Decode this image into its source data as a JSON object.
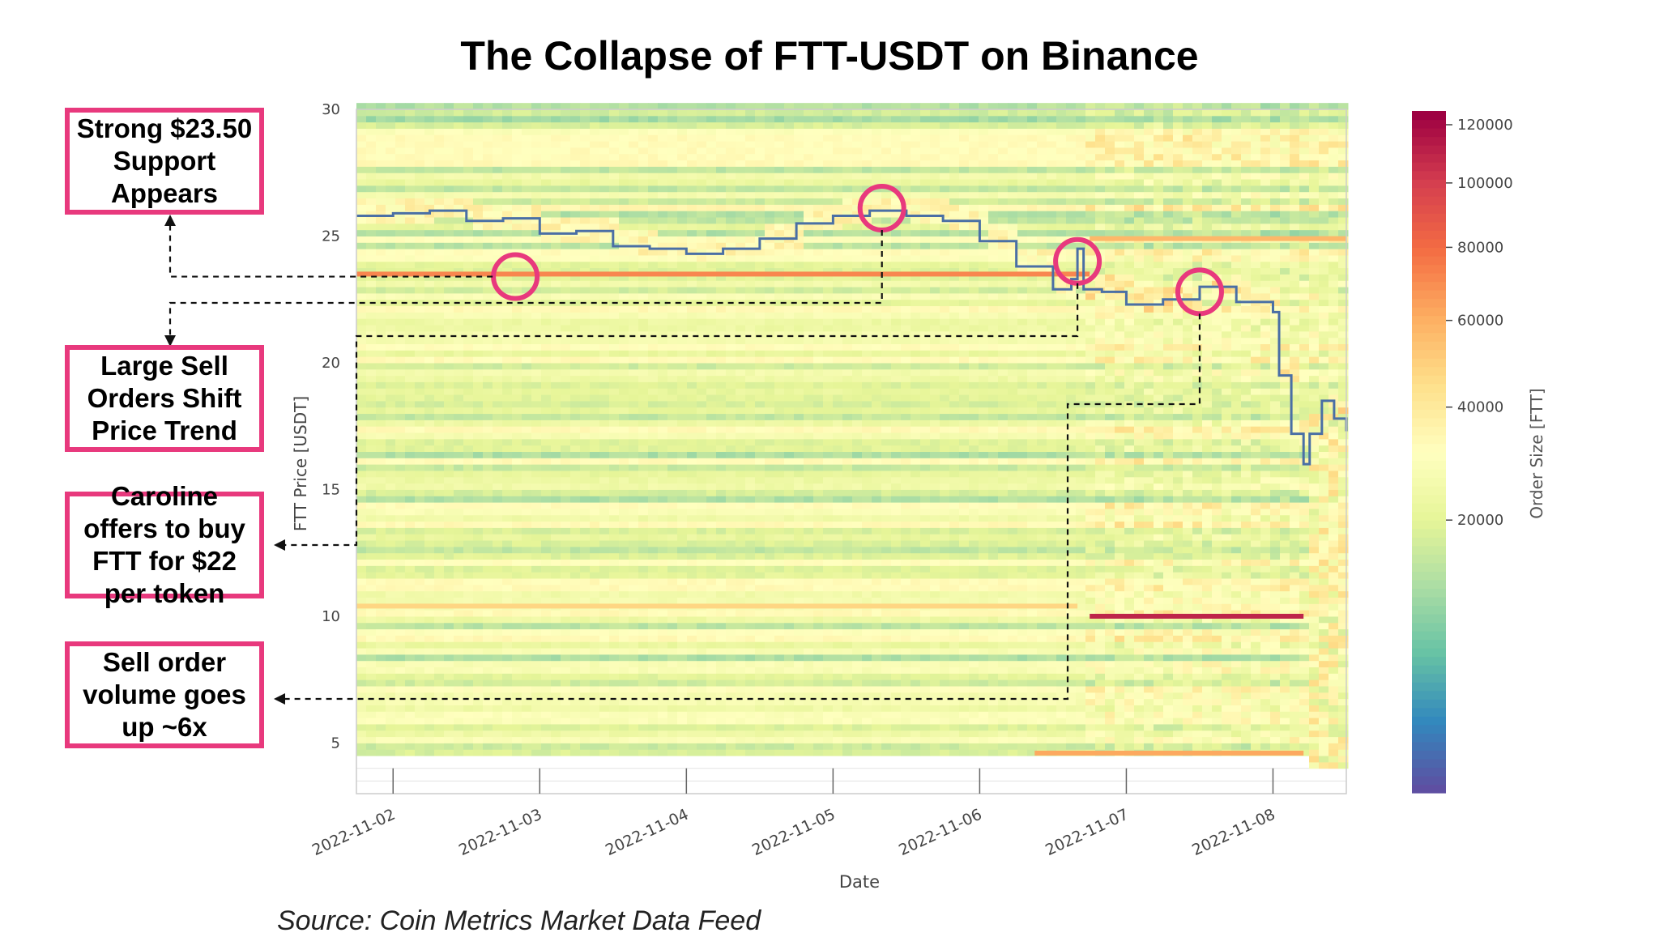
{
  "chart_data": {
    "type": "heatmap",
    "title": "The Collapse of FTT-USDT on Binance",
    "xlabel": "Date",
    "ylabel": "FTT Price [USDT]",
    "colorbar_label": "Order Size [FTT]",
    "x_range": [
      "2022-11-01T18:00",
      "2022-11-08T12:00"
    ],
    "x_ticks": [
      "2022-11-02",
      "2022-11-03",
      "2022-11-04",
      "2022-11-05",
      "2022-11-06",
      "2022-11-07",
      "2022-11-08"
    ],
    "ylim": [
      3,
      30
    ],
    "y_ticks": [
      5,
      10,
      15,
      20,
      25,
      30
    ],
    "colorbar_ticks": [
      20000,
      40000,
      60000,
      80000,
      100000,
      120000
    ],
    "colorscale": [
      "#5e4fa2",
      "#3288bd",
      "#66c2a5",
      "#abdda4",
      "#e6f598",
      "#ffffbf",
      "#fee08b",
      "#fdae61",
      "#f46d43",
      "#d53e4f",
      "#9e0142"
    ],
    "price_series": {
      "name": "",
      "color": "#4a6fa5",
      "x": [
        "2022-11-01T18:00",
        "2022-11-02T00:00",
        "2022-11-02T06:00",
        "2022-11-02T12:00",
        "2022-11-02T18:00",
        "2022-11-03T00:00",
        "2022-11-03T06:00",
        "2022-11-03T12:00",
        "2022-11-03T18:00",
        "2022-11-04T00:00",
        "2022-11-04T06:00",
        "2022-11-04T12:00",
        "2022-11-04T18:00",
        "2022-11-05T00:00",
        "2022-11-05T06:00",
        "2022-11-05T12:00",
        "2022-11-05T18:00",
        "2022-11-06T00:00",
        "2022-11-06T06:00",
        "2022-11-06T12:00",
        "2022-11-06T15:00",
        "2022-11-06T16:00",
        "2022-11-06T17:00",
        "2022-11-06T20:00",
        "2022-11-07T00:00",
        "2022-11-07T06:00",
        "2022-11-07T12:00",
        "2022-11-07T18:00",
        "2022-11-08T00:00",
        "2022-11-08T01:00",
        "2022-11-08T03:00",
        "2022-11-08T05:00",
        "2022-11-08T06:00",
        "2022-11-08T08:00",
        "2022-11-08T10:00",
        "2022-11-08T12:00"
      ],
      "y": [
        25.8,
        25.9,
        26.0,
        25.6,
        25.7,
        25.1,
        25.2,
        24.6,
        24.5,
        24.3,
        24.5,
        24.9,
        25.5,
        25.8,
        26.0,
        25.8,
        25.6,
        24.8,
        23.8,
        22.9,
        23.3,
        24.5,
        22.9,
        22.8,
        22.3,
        22.5,
        23.0,
        22.4,
        22.0,
        19.5,
        17.2,
        16.0,
        17.2,
        18.5,
        17.8,
        17.3
      ]
    },
    "support_levels": [
      {
        "y": 23.5,
        "x_start": "2022-11-01T18:00",
        "x_end": "2022-11-06T18:00",
        "size": 70000
      },
      {
        "y": 10.4,
        "x_start": "2022-11-01T18:00",
        "x_end": "2022-11-06T16:00",
        "size": 45000
      },
      {
        "y": 10.0,
        "x_start": "2022-11-06T18:00",
        "x_end": "2022-11-08T05:00",
        "size": 110000
      },
      {
        "y": 24.9,
        "x_start": "2022-11-06T18:00",
        "x_end": "2022-11-08T12:00",
        "size": 55000
      },
      {
        "y": 4.6,
        "x_start": "2022-11-06T09:00",
        "x_end": "2022-11-08T05:00",
        "size": 60000
      }
    ],
    "highlight_markers": [
      {
        "x": "2022-11-02T20:00",
        "y": 23.4
      },
      {
        "x": "2022-11-05T08:00",
        "y": 26.1
      },
      {
        "x": "2022-11-06T16:00",
        "y": 24.0
      },
      {
        "x": "2022-11-07T12:00",
        "y": 22.8
      }
    ]
  },
  "annotations": [
    {
      "text": "Strong $23.50 Support Appears"
    },
    {
      "text": "Large Sell Orders Shift Price Trend"
    },
    {
      "text": "Caroline offers to buy FTT for $22 per token"
    },
    {
      "text": "Sell order volume goes up ~6x"
    }
  ],
  "source": "Source: Coin Metrics Market Data Feed",
  "colors": {
    "annotation": "#e8397d",
    "price_line": "#4a6fa5"
  }
}
